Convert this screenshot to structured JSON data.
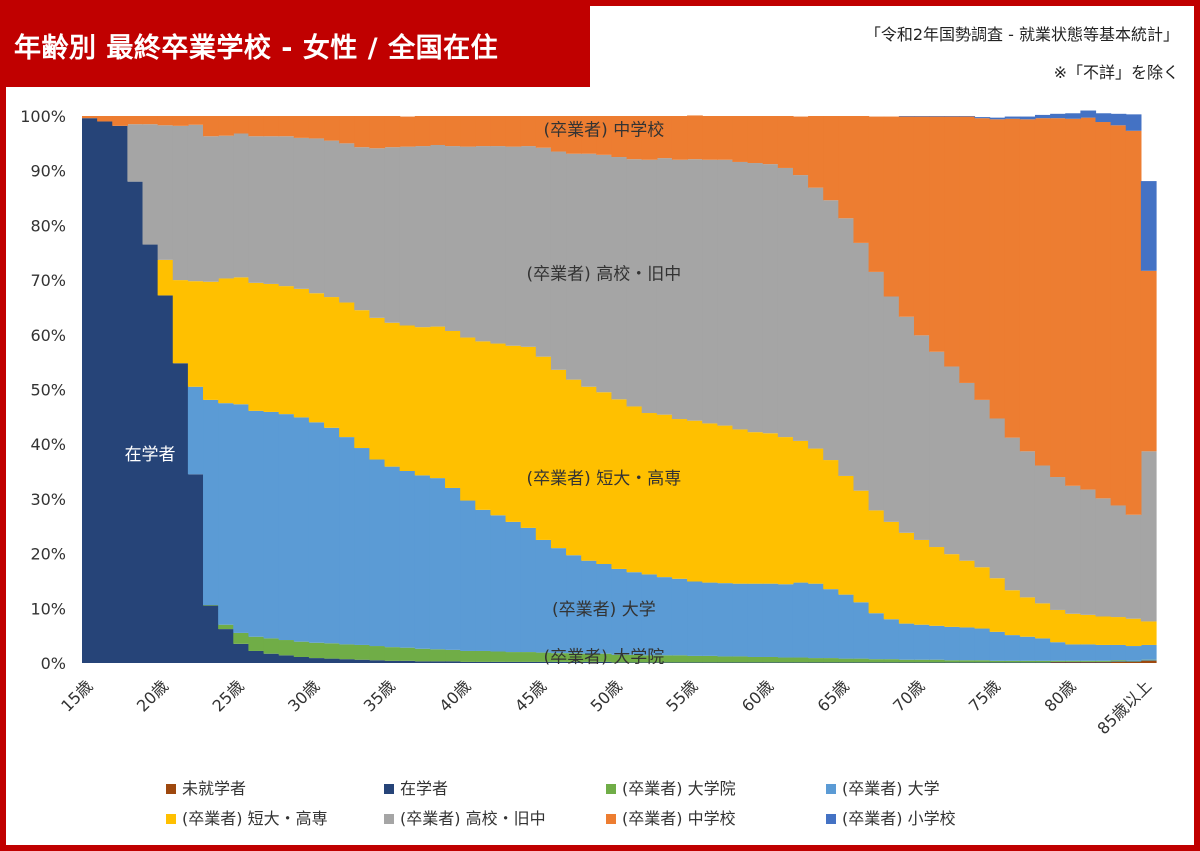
{
  "title": "年齢別 最終卒業学校 - 女性 / 全国在住",
  "source": "「令和2年国勢調査 - 就業状態等基本統計」",
  "note": "※「不詳」を除く",
  "colors": {
    "frame": "#c00000",
    "未就学者": "#9e480e",
    "在学者": "#264478",
    "大学院": "#70ad47",
    "大学": "#5b9bd5",
    "短大・高専": "#ffc000",
    "高校・旧中": "#a5a5a5",
    "中学校": "#ed7d31",
    "小学校": "#4472c4"
  },
  "chart_data": {
    "type": "area",
    "stacked_percent": true,
    "ylim": [
      0,
      100
    ],
    "yticks": [
      "0%",
      "10%",
      "20%",
      "30%",
      "40%",
      "50%",
      "60%",
      "70%",
      "80%",
      "90%",
      "100%"
    ],
    "x_tick_labels": [
      "15歳",
      "20歳",
      "25歳",
      "30歳",
      "35歳",
      "40歳",
      "45歳",
      "50歳",
      "55歳",
      "60歳",
      "65歳",
      "70歳",
      "75歳",
      "80歳",
      "85歳以上"
    ],
    "ages": [
      15,
      16,
      17,
      18,
      19,
      20,
      21,
      22,
      23,
      24,
      25,
      26,
      27,
      28,
      29,
      30,
      31,
      32,
      33,
      34,
      35,
      36,
      37,
      38,
      39,
      40,
      41,
      42,
      43,
      44,
      45,
      46,
      47,
      48,
      49,
      50,
      51,
      52,
      53,
      54,
      55,
      56,
      57,
      58,
      59,
      60,
      61,
      62,
      63,
      64,
      65,
      66,
      67,
      68,
      69,
      70,
      71,
      72,
      73,
      74,
      75,
      76,
      77,
      78,
      79,
      80,
      81,
      82,
      83,
      84,
      "85以上"
    ],
    "series": [
      {
        "name": "未就学者",
        "values": [
          0,
          0,
          0,
          0,
          0,
          0,
          0,
          0,
          0,
          0,
          0,
          0,
          0,
          0,
          0,
          0,
          0,
          0,
          0,
          0,
          0,
          0,
          0,
          0,
          0,
          0,
          0,
          0,
          0,
          0,
          0,
          0,
          0,
          0,
          0,
          0,
          0,
          0,
          0,
          0,
          0,
          0,
          0,
          0,
          0,
          0,
          0,
          0,
          0,
          0,
          0,
          0,
          0,
          0,
          0,
          0,
          0,
          0,
          0,
          0,
          0,
          0,
          0,
          0,
          0.1,
          0.1,
          0.1,
          0.1,
          0.2,
          0.2,
          0.4
        ]
      },
      {
        "name": "在学者",
        "values": [
          99.6,
          99,
          98.2,
          88,
          76.5,
          67.2,
          54.8,
          34.5,
          10.5,
          6.2,
          3.5,
          2.2,
          1.7,
          1.4,
          1.1,
          0.9,
          0.8,
          0.7,
          0.6,
          0.5,
          0.4,
          0.4,
          0.3,
          0.3,
          0.3,
          0.2,
          0.2,
          0.2,
          0.2,
          0.2,
          0.2,
          0.2,
          0.2,
          0.2,
          0.2,
          0.1,
          0.1,
          0.1,
          0.1,
          0.1,
          0.1,
          0.1,
          0.1,
          0.1,
          0.1,
          0.1,
          0.1,
          0.1,
          0.1,
          0.1,
          0.1,
          0.1,
          0.1,
          0.1,
          0.1,
          0.1,
          0.1,
          0.1,
          0.1,
          0.1,
          0.1,
          0.1,
          0.1,
          0.1,
          0.1,
          0.1,
          0.1,
          0.1,
          0.1,
          0.1,
          0.1
        ]
      },
      {
        "name": "(卒業者) 大学院",
        "values": [
          0,
          0,
          0,
          0,
          0,
          0,
          0,
          0,
          0.1,
          0.8,
          2,
          2.6,
          2.8,
          2.8,
          2.8,
          2.8,
          2.8,
          2.7,
          2.7,
          2.6,
          2.5,
          2.4,
          2.3,
          2.2,
          2.1,
          2,
          2,
          1.9,
          1.8,
          1.8,
          1.7,
          1.6,
          1.6,
          1.5,
          1.5,
          1.4,
          1.4,
          1.3,
          1.3,
          1.3,
          1.2,
          1.2,
          1.1,
          1.1,
          1,
          1,
          0.9,
          0.9,
          0.8,
          0.8,
          0.7,
          0.7,
          0.6,
          0.6,
          0.5,
          0.5,
          0.5,
          0.4,
          0.4,
          0.4,
          0.3,
          0.3,
          0.3,
          0.3,
          0.2,
          0.2,
          0.2,
          0.2,
          0.2,
          0.1,
          0.1
        ]
      },
      {
        "name": "(卒業者) 大学",
        "values": [
          0,
          0,
          0,
          0,
          0,
          0,
          0,
          16,
          37.5,
          40.5,
          41.8,
          41.3,
          41.4,
          41.3,
          41,
          40.3,
          39.4,
          37.9,
          36,
          34.1,
          33,
          32.3,
          31.7,
          31.3,
          29.6,
          27.5,
          25.8,
          24.9,
          23.8,
          22.7,
          20.6,
          19.2,
          17.9,
          17,
          16.4,
          15.7,
          15.1,
          14.8,
          14.3,
          14,
          13.6,
          13.4,
          13.4,
          13.3,
          13.4,
          13.4,
          13.4,
          13.7,
          13.6,
          12.6,
          11.7,
          10.3,
          8.4,
          7.3,
          6.6,
          6.4,
          6.2,
          6.1,
          6,
          5.8,
          5.3,
          4.7,
          4.4,
          4.1,
          3.4,
          3,
          3,
          2.9,
          2.8,
          2.7,
          2.7
        ]
      },
      {
        "name": "(卒業者) 短大・高専",
        "values": [
          0,
          0,
          0,
          0,
          0,
          6.5,
          15.2,
          19.3,
          21.6,
          22.8,
          23.2,
          23.4,
          23.4,
          23.4,
          23.5,
          23.6,
          23.9,
          24.6,
          25.2,
          25.9,
          26.3,
          26.6,
          27.1,
          27.7,
          28.7,
          29.8,
          30.8,
          31.4,
          32.2,
          33.1,
          33.5,
          32.6,
          32.1,
          31.8,
          31.4,
          31,
          30.3,
          29.5,
          29.7,
          29.2,
          29.4,
          29.1,
          28.8,
          28.2,
          27.7,
          27.5,
          26.9,
          25.9,
          24.7,
          23.6,
          21.7,
          20.4,
          18.8,
          17.8,
          16.6,
          15.5,
          14.4,
          13.3,
          12.2,
          11.2,
          9.8,
          8.2,
          7.2,
          6.4,
          5.9,
          5.6,
          5.4,
          5.2,
          5.1,
          5,
          4.3
        ]
      },
      {
        "name": "(卒業者) 高校・旧中",
        "values": [
          0,
          0,
          0,
          10.5,
          22,
          24.6,
          28.2,
          28.6,
          26.6,
          26.1,
          26.3,
          26.8,
          27,
          27.4,
          27.6,
          28.3,
          28.6,
          29.1,
          29.8,
          31,
          32.1,
          32.7,
          33.1,
          33.2,
          33.8,
          34.9,
          35.7,
          36.1,
          36.4,
          36.7,
          38.2,
          39.9,
          41.3,
          42.6,
          43.4,
          44.3,
          45.2,
          46.3,
          46.9,
          47.4,
          47.8,
          48.2,
          48.6,
          48.9,
          49.2,
          49.2,
          49.2,
          48.6,
          47.7,
          47.5,
          47.1,
          45.3,
          43.6,
          41.2,
          39.5,
          37.4,
          35.7,
          34.3,
          32.5,
          30.6,
          29.2,
          27.9,
          26.7,
          25.2,
          24.3,
          23.4,
          22.9,
          21.6,
          20.4,
          19,
          31.1
        ]
      },
      {
        "name": "(卒業者) 中学校",
        "values": [
          0.4,
          1,
          1.8,
          1.5,
          1.5,
          1.7,
          1.8,
          1.6,
          3.7,
          3.6,
          3.2,
          3.7,
          3.7,
          3.7,
          4,
          4.1,
          4.5,
          5,
          5.7,
          5.9,
          5.7,
          5.5,
          5.5,
          5.3,
          5.5,
          5.6,
          5.5,
          5.5,
          5.6,
          5.5,
          5.8,
          6.5,
          6.9,
          6.9,
          7.1,
          7.5,
          7.9,
          8,
          7.7,
          8,
          8,
          8,
          8,
          8.4,
          8.6,
          8.8,
          9.5,
          10.7,
          13.1,
          15.4,
          18.7,
          23.2,
          28.4,
          32.9,
          36.6,
          40,
          43,
          45.7,
          48.7,
          51.5,
          54.7,
          58.3,
          60.7,
          63.5,
          65.6,
          67.1,
          68,
          68.8,
          69.5,
          70.2,
          33
        ]
      },
      {
        "name": "(卒業者) 小学校",
        "values": [
          0,
          0,
          0,
          0,
          0,
          0,
          0,
          0,
          0,
          0,
          0,
          0,
          0,
          0,
          0,
          0,
          0,
          0,
          0,
          0,
          0,
          0,
          0,
          0,
          0,
          0,
          0,
          0,
          0,
          0,
          0,
          0,
          0,
          0,
          0,
          0,
          0,
          0,
          0,
          0,
          0,
          0,
          0,
          0,
          0,
          0,
          0,
          0,
          0,
          0,
          0,
          0,
          0,
          0,
          0.1,
          0.1,
          0.1,
          0.1,
          0.1,
          0.2,
          0.3,
          0.4,
          0.5,
          0.6,
          0.8,
          1,
          1.3,
          1.6,
          2.1,
          3,
          16.4
        ]
      }
    ],
    "area_labels": [
      {
        "series": "在学者",
        "text": "在学者"
      },
      {
        "series": "(卒業者) 大学院",
        "text": "(卒業者) 大学院"
      },
      {
        "series": "(卒業者) 大学",
        "text": "(卒業者) 大学"
      },
      {
        "series": "(卒業者) 短大・高専",
        "text": "(卒業者) 短大・高専"
      },
      {
        "series": "(卒業者) 高校・旧中",
        "text": "(卒業者) 高校・旧中"
      },
      {
        "series": "(卒業者) 中学校",
        "text": "(卒業者) 中学校"
      }
    ],
    "legend": [
      {
        "name": "未就学者"
      },
      {
        "name": "在学者"
      },
      {
        "name": "(卒業者) 大学院"
      },
      {
        "name": "(卒業者) 大学"
      },
      {
        "name": "(卒業者) 短大・高専"
      },
      {
        "name": "(卒業者) 高校・旧中"
      },
      {
        "name": "(卒業者) 中学校"
      },
      {
        "name": "(卒業者) 小学校"
      }
    ],
    "legend_position": "bottom",
    "grid": false
  }
}
